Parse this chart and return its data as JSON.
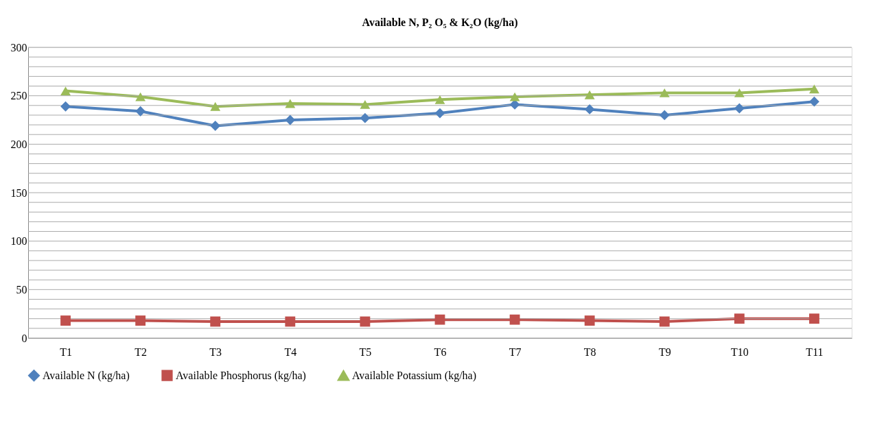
{
  "chart_data": {
    "type": "line",
    "title": "Available N, P₂ O₅ & K₂O (kg/ha)",
    "categories": [
      "T1",
      "T2",
      "T3",
      "T4",
      "T5",
      "T6",
      "T7",
      "T8",
      "T9",
      "T10",
      "T11"
    ],
    "series": [
      {
        "name": "Available N (kg/ha)",
        "color": "#4f81bd",
        "marker": "diamond",
        "values": [
          239,
          234,
          219,
          225,
          227,
          232,
          241,
          236,
          230,
          237,
          244
        ]
      },
      {
        "name": "Available Phosphorus (kg/ha)",
        "color": "#c0504d",
        "marker": "square",
        "values": [
          18,
          18,
          17,
          17,
          17,
          19,
          19,
          18,
          17,
          20,
          20
        ]
      },
      {
        "name": "Available Potassium (kg/ha)",
        "color": "#9bbb59",
        "marker": "triangle",
        "values": [
          255,
          249,
          239,
          242,
          241,
          246,
          249,
          251,
          253,
          253,
          257
        ]
      }
    ],
    "ylim": [
      0,
      300
    ],
    "yticks": [
      0,
      {
        "value": 10,
        "label": null
      },
      {
        "value": 20,
        "label": null
      },
      {
        "value": 30,
        "label": null
      },
      {
        "value": 40,
        "label": null
      },
      50,
      {
        "value": 60,
        "label": null
      },
      {
        "value": 70,
        "label": null
      },
      {
        "value": 80,
        "label": null
      },
      {
        "value": 90,
        "label": null
      },
      100,
      {
        "value": 110,
        "label": null
      },
      {
        "value": 120,
        "label": null
      },
      {
        "value": 130,
        "label": null
      },
      {
        "value": 140,
        "label": null
      },
      150,
      {
        "value": 160,
        "label": null
      },
      {
        "value": 170,
        "label": null
      },
      {
        "value": 180,
        "label": null
      },
      {
        "value": 190,
        "label": null
      },
      200,
      {
        "value": 210,
        "label": null
      },
      {
        "value": 220,
        "label": null
      },
      {
        "value": 230,
        "label": null
      },
      {
        "value": 240,
        "label": null
      },
      250,
      {
        "value": 260,
        "label": null
      },
      {
        "value": 270,
        "label": null
      },
      {
        "value": 280,
        "label": null
      },
      {
        "value": 290,
        "label": null
      },
      300
    ],
    "grid": "y",
    "legend": "bottom",
    "line_style": "solid"
  }
}
